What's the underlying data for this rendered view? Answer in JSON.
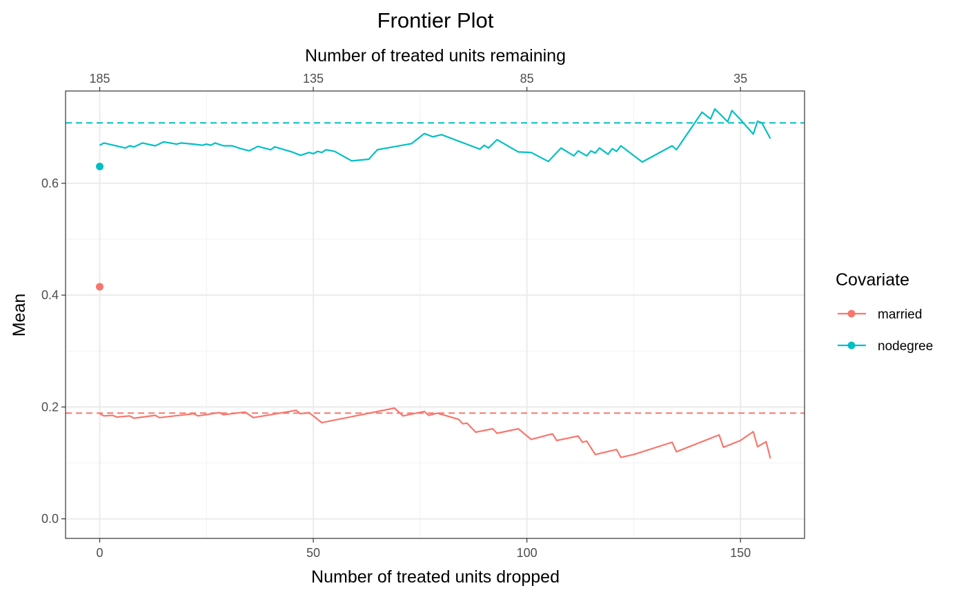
{
  "chart_data": {
    "type": "line",
    "title": "Frontier Plot",
    "xlabel": "Number of treated units dropped",
    "x2label": "Number of treated units remaining",
    "ylabel": "Mean",
    "xlim": [
      -8,
      165
    ],
    "ylim": [
      -0.035,
      0.765
    ],
    "xticks": [
      0,
      50,
      100,
      150
    ],
    "xticks_top": [
      {
        "at": 0,
        "label": "185"
      },
      {
        "at": 50,
        "label": "135"
      },
      {
        "at": 100,
        "label": "85"
      },
      {
        "at": 150,
        "label": "35"
      }
    ],
    "yticks": [
      0.0,
      0.2,
      0.4,
      0.6
    ],
    "ytick_labels": [
      "0.0",
      "0.2",
      "0.4",
      "0.6"
    ],
    "grid": true,
    "legend": {
      "title": "Covariate",
      "position": "right"
    },
    "series": [
      {
        "name": "married",
        "color": "#F8766D",
        "reference_mean": 0.189,
        "start_point": {
          "x": 0,
          "y": 0.415
        },
        "points": [
          [
            0,
            0.188
          ],
          [
            1,
            0.184
          ],
          [
            3,
            0.185
          ],
          [
            4,
            0.182
          ],
          [
            7,
            0.184
          ],
          [
            8,
            0.18
          ],
          [
            13,
            0.185
          ],
          [
            14,
            0.181
          ],
          [
            22,
            0.188
          ],
          [
            23,
            0.184
          ],
          [
            28,
            0.19
          ],
          [
            29,
            0.186
          ],
          [
            34,
            0.191
          ],
          [
            36,
            0.181
          ],
          [
            46,
            0.194
          ],
          [
            47,
            0.188
          ],
          [
            49,
            0.19
          ],
          [
            52,
            0.172
          ],
          [
            69,
            0.198
          ],
          [
            71,
            0.184
          ],
          [
            76,
            0.192
          ],
          [
            77,
            0.185
          ],
          [
            79,
            0.189
          ],
          [
            84,
            0.178
          ],
          [
            85,
            0.17
          ],
          [
            86,
            0.171
          ],
          [
            88,
            0.155
          ],
          [
            92,
            0.161
          ],
          [
            93,
            0.153
          ],
          [
            98,
            0.161
          ],
          [
            101,
            0.142
          ],
          [
            106,
            0.152
          ],
          [
            107,
            0.14
          ],
          [
            112,
            0.148
          ],
          [
            113,
            0.137
          ],
          [
            114,
            0.139
          ],
          [
            116,
            0.115
          ],
          [
            121,
            0.124
          ],
          [
            122,
            0.11
          ],
          [
            125,
            0.115
          ],
          [
            134,
            0.137
          ],
          [
            135,
            0.12
          ],
          [
            145,
            0.15
          ],
          [
            146,
            0.128
          ],
          [
            150,
            0.14
          ],
          [
            153,
            0.156
          ],
          [
            154,
            0.129
          ],
          [
            156,
            0.138
          ],
          [
            157,
            0.108
          ]
        ]
      },
      {
        "name": "nodegree",
        "color": "#00BFC4",
        "reference_mean": 0.708,
        "start_point": {
          "x": 0,
          "y": 0.63
        },
        "points": [
          [
            0,
            0.668
          ],
          [
            1,
            0.672
          ],
          [
            6,
            0.663
          ],
          [
            7,
            0.667
          ],
          [
            8,
            0.665
          ],
          [
            10,
            0.672
          ],
          [
            13,
            0.667
          ],
          [
            15,
            0.674
          ],
          [
            18,
            0.67
          ],
          [
            19,
            0.672
          ],
          [
            22,
            0.67
          ],
          [
            24,
            0.668
          ],
          [
            25,
            0.67
          ],
          [
            26,
            0.668
          ],
          [
            27,
            0.672
          ],
          [
            29,
            0.667
          ],
          [
            31,
            0.667
          ],
          [
            33,
            0.662
          ],
          [
            35,
            0.658
          ],
          [
            37,
            0.666
          ],
          [
            40,
            0.66
          ],
          [
            41,
            0.665
          ],
          [
            45,
            0.656
          ],
          [
            47,
            0.65
          ],
          [
            49,
            0.655
          ],
          [
            50,
            0.653
          ],
          [
            51,
            0.657
          ],
          [
            52,
            0.655
          ],
          [
            53,
            0.66
          ],
          [
            55,
            0.657
          ],
          [
            59,
            0.64
          ],
          [
            63,
            0.643
          ],
          [
            65,
            0.66
          ],
          [
            73,
            0.671
          ],
          [
            76,
            0.689
          ],
          [
            78,
            0.683
          ],
          [
            80,
            0.687
          ],
          [
            89,
            0.661
          ],
          [
            90,
            0.668
          ],
          [
            91,
            0.663
          ],
          [
            93,
            0.678
          ],
          [
            98,
            0.656
          ],
          [
            101,
            0.655
          ],
          [
            105,
            0.639
          ],
          [
            108,
            0.663
          ],
          [
            111,
            0.649
          ],
          [
            112,
            0.658
          ],
          [
            114,
            0.649
          ],
          [
            115,
            0.658
          ],
          [
            116,
            0.654
          ],
          [
            117,
            0.663
          ],
          [
            119,
            0.652
          ],
          [
            120,
            0.662
          ],
          [
            121,
            0.657
          ],
          [
            122,
            0.667
          ],
          [
            127,
            0.638
          ],
          [
            134,
            0.667
          ],
          [
            135,
            0.66
          ],
          [
            141,
            0.727
          ],
          [
            143,
            0.715
          ],
          [
            144,
            0.733
          ],
          [
            147,
            0.71
          ],
          [
            148,
            0.73
          ],
          [
            150,
            0.714
          ],
          [
            153,
            0.688
          ],
          [
            154,
            0.711
          ],
          [
            155,
            0.708
          ],
          [
            157,
            0.68
          ]
        ]
      }
    ]
  }
}
